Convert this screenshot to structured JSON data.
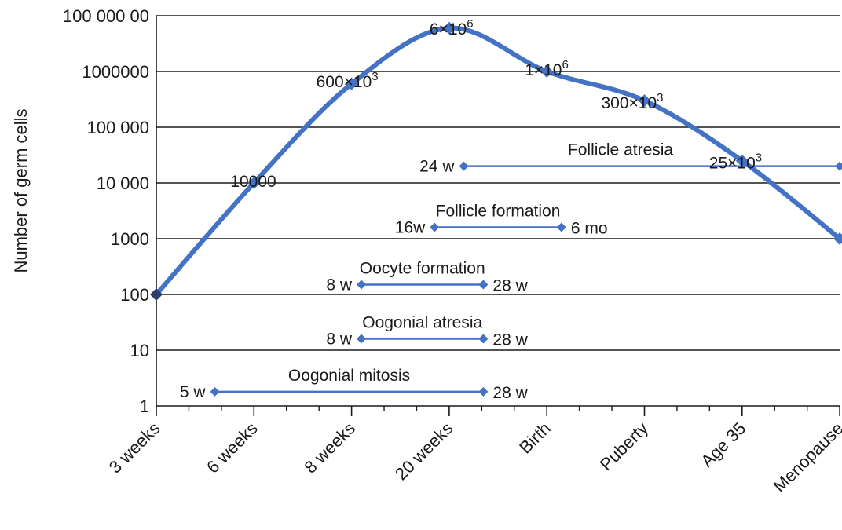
{
  "chart_data": {
    "type": "line",
    "ylabel": "Number of germ cells",
    "xlabel": "",
    "y_scale": "log",
    "ylim": [
      1,
      10000000
    ],
    "y_tick_values": [
      1,
      10,
      100,
      1000,
      10000,
      100000,
      1000000,
      10000000
    ],
    "y_tick_labels": [
      "1",
      "10",
      "100",
      "1000",
      "10 000",
      "100 000",
      "1000000",
      "100 000 00"
    ],
    "categories": [
      "3 weeks",
      "6 weeks",
      "8 weeks",
      "20 weeks",
      "Birth",
      "Puberty",
      "Age 35",
      "Menopause"
    ],
    "series": [
      {
        "values": [
          100,
          10000,
          600000,
          6000000,
          1000000,
          300000,
          25000,
          1000
        ]
      }
    ],
    "annotations": [
      {
        "category": "6 weeks",
        "value": 10000,
        "text": "10000",
        "sup": ""
      },
      {
        "category": "8 weeks",
        "value": 600000,
        "text": "600×10",
        "sup": "3"
      },
      {
        "category": "20 weeks",
        "value": 6000000,
        "text": "6×10",
        "sup": "6"
      },
      {
        "category": "Birth",
        "value": 1000000,
        "text": "1×10",
        "sup": "6"
      },
      {
        "category": "Puberty",
        "value": 300000,
        "text": "300×10",
        "sup": "3"
      },
      {
        "category": "Age 35",
        "value": 25000,
        "text": "25×10",
        "sup": "3"
      }
    ],
    "ranges": [
      {
        "name": "Follicle atresia",
        "start_label": "24 w",
        "end_label": "",
        "start": 3.15,
        "end": 7.0,
        "level": 20000
      },
      {
        "name": "Follicle formation",
        "start_label": "16w",
        "end_label": "6 mo",
        "start": 2.85,
        "end": 4.15,
        "level": 1600
      },
      {
        "name": "Oocyte formation",
        "start_label": "8 w",
        "end_label": "28 w",
        "start": 2.1,
        "end": 3.35,
        "level": 150
      },
      {
        "name": "Oogonial atresia",
        "start_label": "8 w",
        "end_label": "28 w",
        "start": 2.1,
        "end": 3.35,
        "level": 16
      },
      {
        "name": "Oogonial mitosis",
        "start_label": "5 w",
        "end_label": "28 w",
        "start": 0.6,
        "end": 3.35,
        "level": 1.8
      }
    ],
    "colors": {
      "line": "#4472c4",
      "marker": "#4472c4",
      "grid": "#1a1a1a"
    },
    "grid": true
  }
}
